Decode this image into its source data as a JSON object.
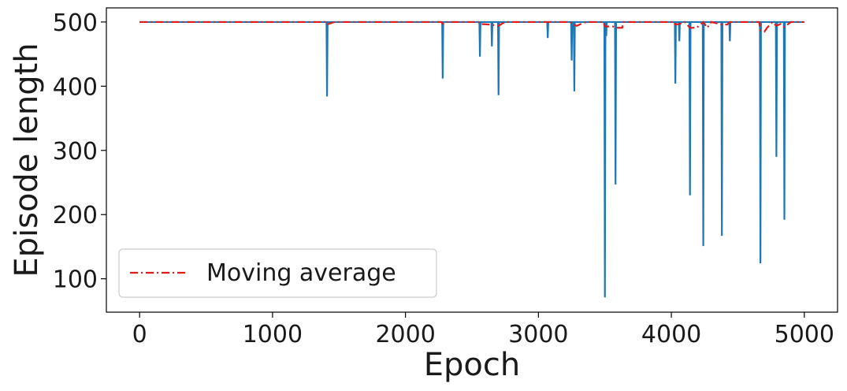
{
  "chart_data": {
    "type": "line",
    "title": "",
    "xlabel": "Epoch",
    "ylabel": "Episode length",
    "xlim": [
      -250,
      5250
    ],
    "ylim": [
      48,
      522
    ],
    "xticks": [
      0,
      1000,
      2000,
      3000,
      4000,
      5000
    ],
    "yticks": [
      100,
      200,
      300,
      400,
      500
    ],
    "grid": false,
    "legend": {
      "placement": "lower-left"
    },
    "baseline": 500,
    "series": [
      {
        "name": "",
        "color": "#1f77b4",
        "style": "solid",
        "dips": [
          {
            "x": 1410,
            "y": 384
          },
          {
            "x": 2280,
            "y": 412
          },
          {
            "x": 2560,
            "y": 446
          },
          {
            "x": 2650,
            "y": 462
          },
          {
            "x": 2700,
            "y": 386
          },
          {
            "x": 3070,
            "y": 475
          },
          {
            "x": 3250,
            "y": 440
          },
          {
            "x": 3270,
            "y": 392
          },
          {
            "x": 3500,
            "y": 71
          },
          {
            "x": 3510,
            "y": 478
          },
          {
            "x": 3580,
            "y": 247
          },
          {
            "x": 4030,
            "y": 404
          },
          {
            "x": 4060,
            "y": 470
          },
          {
            "x": 4140,
            "y": 230
          },
          {
            "x": 4240,
            "y": 151
          },
          {
            "x": 4380,
            "y": 167
          },
          {
            "x": 4440,
            "y": 470
          },
          {
            "x": 4670,
            "y": 124
          },
          {
            "x": 4790,
            "y": 290
          },
          {
            "x": 4850,
            "y": 192
          }
        ]
      },
      {
        "name": "Moving average",
        "color": "#e31a1c",
        "style": "dashdot",
        "points": [
          [
            0,
            500
          ],
          [
            1400,
            500
          ],
          [
            1410,
            496
          ],
          [
            1450,
            499
          ],
          [
            1470,
            500
          ],
          [
            2270,
            500
          ],
          [
            2280,
            497
          ],
          [
            2300,
            500
          ],
          [
            2550,
            500
          ],
          [
            2560,
            497
          ],
          [
            2640,
            496
          ],
          [
            2700,
            494
          ],
          [
            2730,
            498
          ],
          [
            2760,
            500
          ],
          [
            3240,
            500
          ],
          [
            3260,
            496
          ],
          [
            3290,
            494
          ],
          [
            3330,
            498
          ],
          [
            3360,
            500
          ],
          [
            3490,
            500
          ],
          [
            3500,
            493
          ],
          [
            3560,
            493
          ],
          [
            3580,
            491
          ],
          [
            3630,
            491
          ],
          [
            3640,
            500
          ],
          [
            4020,
            500
          ],
          [
            4030,
            496
          ],
          [
            4060,
            497
          ],
          [
            4100,
            500
          ],
          [
            4140,
            491
          ],
          [
            4190,
            491
          ],
          [
            4240,
            500
          ],
          [
            4270,
            491
          ],
          [
            4300,
            500
          ],
          [
            4380,
            496
          ],
          [
            4420,
            496
          ],
          [
            4440,
            500
          ],
          [
            4660,
            500
          ],
          [
            4670,
            487
          ],
          [
            4700,
            485
          ],
          [
            4720,
            491
          ],
          [
            4760,
            500
          ],
          [
            4790,
            494
          ],
          [
            4820,
            497
          ],
          [
            4850,
            492
          ],
          [
            4880,
            497
          ],
          [
            4900,
            500
          ],
          [
            5000,
            500
          ]
        ]
      }
    ]
  }
}
